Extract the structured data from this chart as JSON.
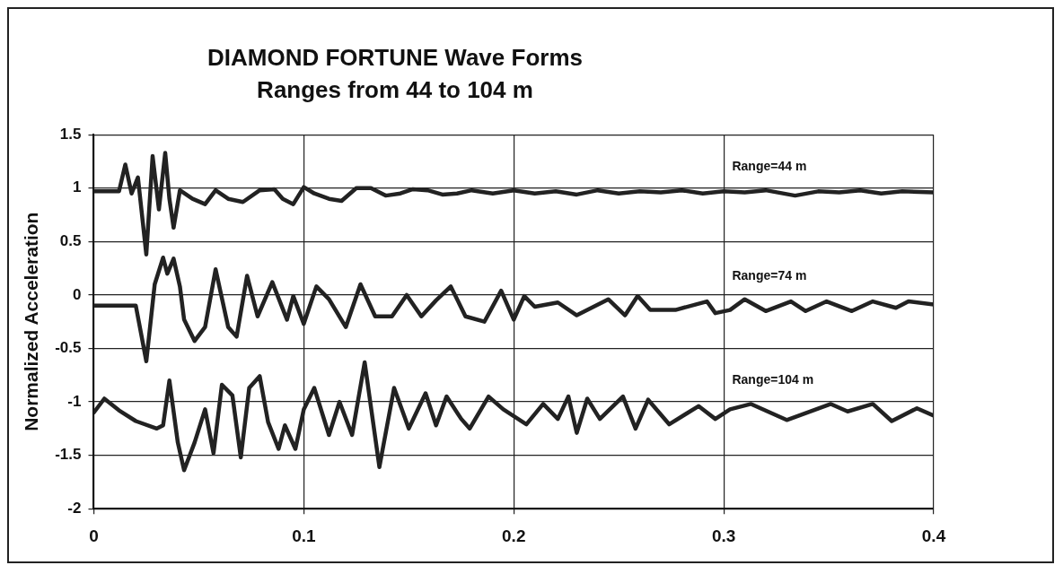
{
  "chart_data": {
    "type": "line",
    "title": "DIAMOND FORTUNE Wave Forms",
    "subtitle": "Ranges from 44 to 104 m",
    "ylabel": "Normalized Acceleration",
    "xlim": [
      0,
      0.4
    ],
    "xticks": [
      0,
      0.1,
      0.2,
      0.3,
      0.4
    ],
    "ylim": [
      -2,
      1.5
    ],
    "yticks": [
      -2,
      -1.5,
      -1,
      -0.5,
      0,
      0.5,
      1,
      1.5
    ],
    "grid": true,
    "legend": false,
    "marker": "none",
    "line_style": "solid",
    "series": [
      {
        "name": "Range=44 m",
        "color": "#222222",
        "x": [
          0,
          0.012,
          0.015,
          0.018,
          0.021,
          0.025,
          0.028,
          0.031,
          0.034,
          0.036,
          0.038,
          0.041,
          0.047,
          0.053,
          0.058,
          0.064,
          0.071,
          0.079,
          0.086,
          0.09,
          0.095,
          0.1,
          0.105,
          0.112,
          0.118,
          0.125,
          0.132,
          0.139,
          0.146,
          0.152,
          0.159,
          0.166,
          0.173,
          0.18,
          0.19,
          0.2,
          0.21,
          0.22,
          0.23,
          0.24,
          0.25,
          0.26,
          0.27,
          0.28,
          0.29,
          0.3,
          0.31,
          0.32,
          0.334,
          0.345,
          0.355,
          0.365,
          0.375,
          0.385,
          0.4
        ],
        "values": [
          0.97,
          0.97,
          1.22,
          0.95,
          1.1,
          0.38,
          1.3,
          0.8,
          1.33,
          0.9,
          0.63,
          0.98,
          0.9,
          0.85,
          0.98,
          0.9,
          0.87,
          0.98,
          0.99,
          0.9,
          0.85,
          1.01,
          0.95,
          0.9,
          0.88,
          1.0,
          1.0,
          0.93,
          0.95,
          0.99,
          0.98,
          0.94,
          0.95,
          0.98,
          0.95,
          0.98,
          0.95,
          0.97,
          0.94,
          0.98,
          0.95,
          0.97,
          0.96,
          0.98,
          0.95,
          0.97,
          0.96,
          0.98,
          0.93,
          0.97,
          0.96,
          0.98,
          0.95,
          0.97,
          0.96
        ]
      },
      {
        "name": "Range=74 m",
        "color": "#222222",
        "x": [
          0,
          0.02,
          0.025,
          0.029,
          0.033,
          0.035,
          0.038,
          0.041,
          0.043,
          0.048,
          0.053,
          0.058,
          0.064,
          0.068,
          0.073,
          0.078,
          0.085,
          0.092,
          0.095,
          0.1,
          0.106,
          0.112,
          0.12,
          0.127,
          0.134,
          0.142,
          0.149,
          0.156,
          0.163,
          0.17,
          0.177,
          0.186,
          0.194,
          0.2,
          0.205,
          0.21,
          0.221,
          0.23,
          0.245,
          0.253,
          0.259,
          0.265,
          0.277,
          0.292,
          0.296,
          0.303,
          0.31,
          0.32,
          0.332,
          0.339,
          0.349,
          0.361,
          0.371,
          0.382,
          0.388,
          0.4
        ],
        "values": [
          -0.1,
          -0.1,
          -0.62,
          0.1,
          0.35,
          0.2,
          0.34,
          0.08,
          -0.23,
          -0.43,
          -0.3,
          0.24,
          -0.3,
          -0.39,
          0.18,
          -0.2,
          0.12,
          -0.23,
          -0.01,
          -0.27,
          0.08,
          -0.04,
          -0.3,
          0.1,
          -0.2,
          -0.2,
          0.0,
          -0.2,
          -0.05,
          0.08,
          -0.2,
          -0.25,
          0.04,
          -0.23,
          -0.01,
          -0.11,
          -0.07,
          -0.19,
          -0.04,
          -0.19,
          -0.01,
          -0.14,
          -0.14,
          -0.06,
          -0.17,
          -0.14,
          -0.04,
          -0.15,
          -0.06,
          -0.15,
          -0.06,
          -0.15,
          -0.06,
          -0.12,
          -0.06,
          -0.09
        ]
      },
      {
        "name": "Range=104 m",
        "color": "#222222",
        "x": [
          0,
          0.005,
          0.012,
          0.02,
          0.03,
          0.033,
          0.036,
          0.04,
          0.043,
          0.048,
          0.053,
          0.057,
          0.061,
          0.066,
          0.07,
          0.074,
          0.079,
          0.083,
          0.088,
          0.091,
          0.096,
          0.1,
          0.105,
          0.112,
          0.117,
          0.123,
          0.129,
          0.136,
          0.143,
          0.15,
          0.158,
          0.163,
          0.168,
          0.175,
          0.179,
          0.188,
          0.195,
          0.206,
          0.214,
          0.221,
          0.226,
          0.23,
          0.235,
          0.241,
          0.252,
          0.258,
          0.264,
          0.274,
          0.288,
          0.296,
          0.303,
          0.313,
          0.33,
          0.351,
          0.359,
          0.371,
          0.38,
          0.392,
          0.4
        ],
        "values": [
          -1.1,
          -0.97,
          -1.08,
          -1.18,
          -1.25,
          -1.22,
          -0.8,
          -1.38,
          -1.64,
          -1.38,
          -1.07,
          -1.48,
          -0.84,
          -0.94,
          -1.52,
          -0.87,
          -0.76,
          -1.19,
          -1.44,
          -1.22,
          -1.44,
          -1.07,
          -0.87,
          -1.31,
          -1.0,
          -1.31,
          -0.63,
          -1.61,
          -0.87,
          -1.25,
          -0.92,
          -1.22,
          -0.95,
          -1.16,
          -1.25,
          -0.95,
          -1.07,
          -1.21,
          -1.02,
          -1.16,
          -0.95,
          -1.29,
          -0.97,
          -1.16,
          -0.95,
          -1.25,
          -0.98,
          -1.21,
          -1.04,
          -1.16,
          -1.07,
          -1.02,
          -1.17,
          -1.02,
          -1.09,
          -1.02,
          -1.18,
          -1.06,
          -1.13
        ]
      }
    ]
  }
}
